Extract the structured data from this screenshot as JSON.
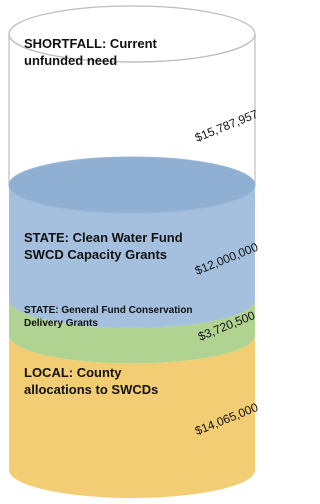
{
  "chart_data": {
    "type": "cylinder",
    "categories": [
      "LOCAL:  County allocations to SWCDs",
      "STATE:  General Fund Conservation Delivery Grants",
      "STATE:  Clean Water Fund SWCD Capacity Grants",
      "SHORTFALL:  Current unfunded need"
    ],
    "values": [
      14065000,
      3720500,
      12000000,
      15787957
    ],
    "value_labels": [
      "$14,065,000",
      "$3,720,500",
      "$12,000,000",
      "$15,787,957"
    ],
    "colors": [
      "#f3cd74",
      "#b0d392",
      "#a4c0de",
      "#ffffff"
    ]
  }
}
